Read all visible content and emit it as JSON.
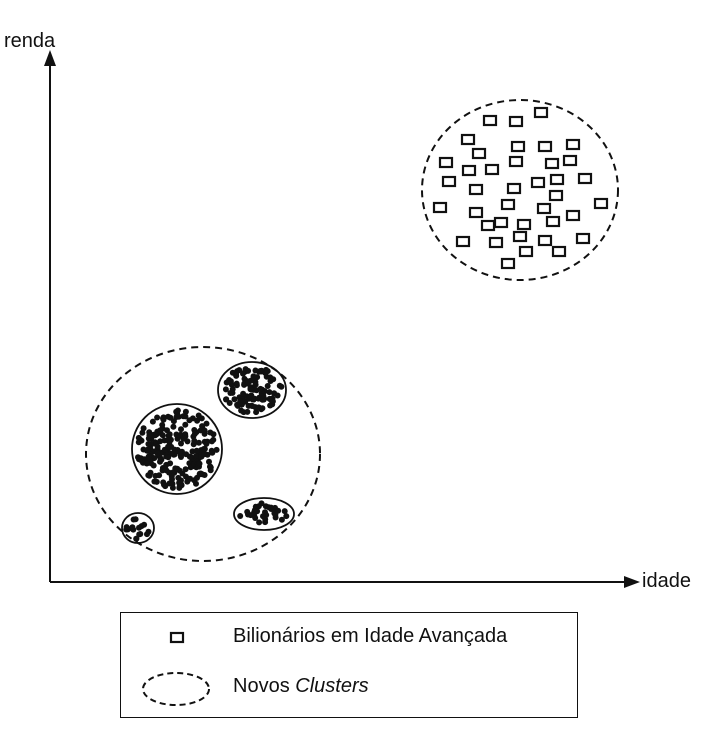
{
  "axes": {
    "y_label": "renda",
    "x_label": "idade"
  },
  "legend": {
    "items": [
      {
        "symbol": "hollow-square-marker",
        "label": "Bilionários em Idade Avançada"
      },
      {
        "symbol": "dashed-ellipse",
        "label_plain": "Novos ",
        "label_italic": "Clusters"
      }
    ]
  },
  "colors": {
    "ink": "#111111",
    "background": "#ffffff"
  }
}
